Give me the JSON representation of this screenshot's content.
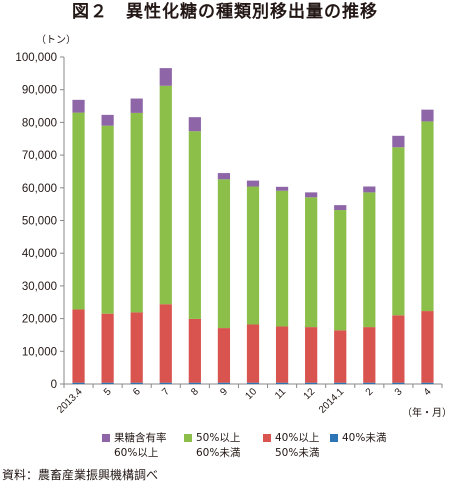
{
  "chart_data": {
    "type": "bar",
    "stacked": true,
    "title": "図２　異性化糖の種類別移出量の推移",
    "ylabel": "（トン）",
    "xlabel": "（年・月）",
    "ylim": [
      0,
      100000
    ],
    "yticks": [
      "0",
      "10,000",
      "20,000",
      "30,000",
      "40,000",
      "50,000",
      "60,000",
      "70,000",
      "80,000",
      "90,000",
      "100,000"
    ],
    "grid": false,
    "legend_position": "bottom",
    "categories": [
      "2013.4",
      "5",
      "6",
      "7",
      "8",
      "9",
      "10",
      "11",
      "12",
      "2014.1",
      "2",
      "3",
      "4"
    ],
    "series": [
      {
        "name": "40%未満",
        "color": "#2e75b6",
        "values": [
          400,
          400,
          400,
          400,
          400,
          400,
          400,
          400,
          400,
          400,
          400,
          400,
          400
        ]
      },
      {
        "name": "40%以上 50%未満",
        "color": "#d9534f",
        "values": [
          22400,
          21100,
          21500,
          24000,
          19500,
          16700,
          17800,
          17200,
          17000,
          16000,
          17000,
          20600,
          21900
        ]
      },
      {
        "name": "50%以上 60%未満",
        "color": "#8cbf4a",
        "values": [
          60200,
          57500,
          61000,
          66800,
          57400,
          45500,
          42200,
          41500,
          39700,
          36800,
          41200,
          51400,
          58000
        ]
      },
      {
        "name": "果糖含有率 60%以上",
        "color": "#8e66a8",
        "values": [
          3900,
          3300,
          4400,
          5400,
          4300,
          1900,
          1800,
          1200,
          1500,
          1500,
          1800,
          3500,
          3600
        ]
      }
    ]
  },
  "legend": {
    "items": [
      {
        "line1": "果糖含有率",
        "line2": "60%以上",
        "color": "#8e66a8"
      },
      {
        "line1": "50%以上",
        "line2": "60%未満",
        "color": "#8cbf4a"
      },
      {
        "line1": "40%以上",
        "line2": "50%未満",
        "color": "#d9534f"
      },
      {
        "line1": "40%未満",
        "line2": "",
        "color": "#2e75b6"
      }
    ]
  },
  "source": "資料：農畜産業振興機構調べ"
}
